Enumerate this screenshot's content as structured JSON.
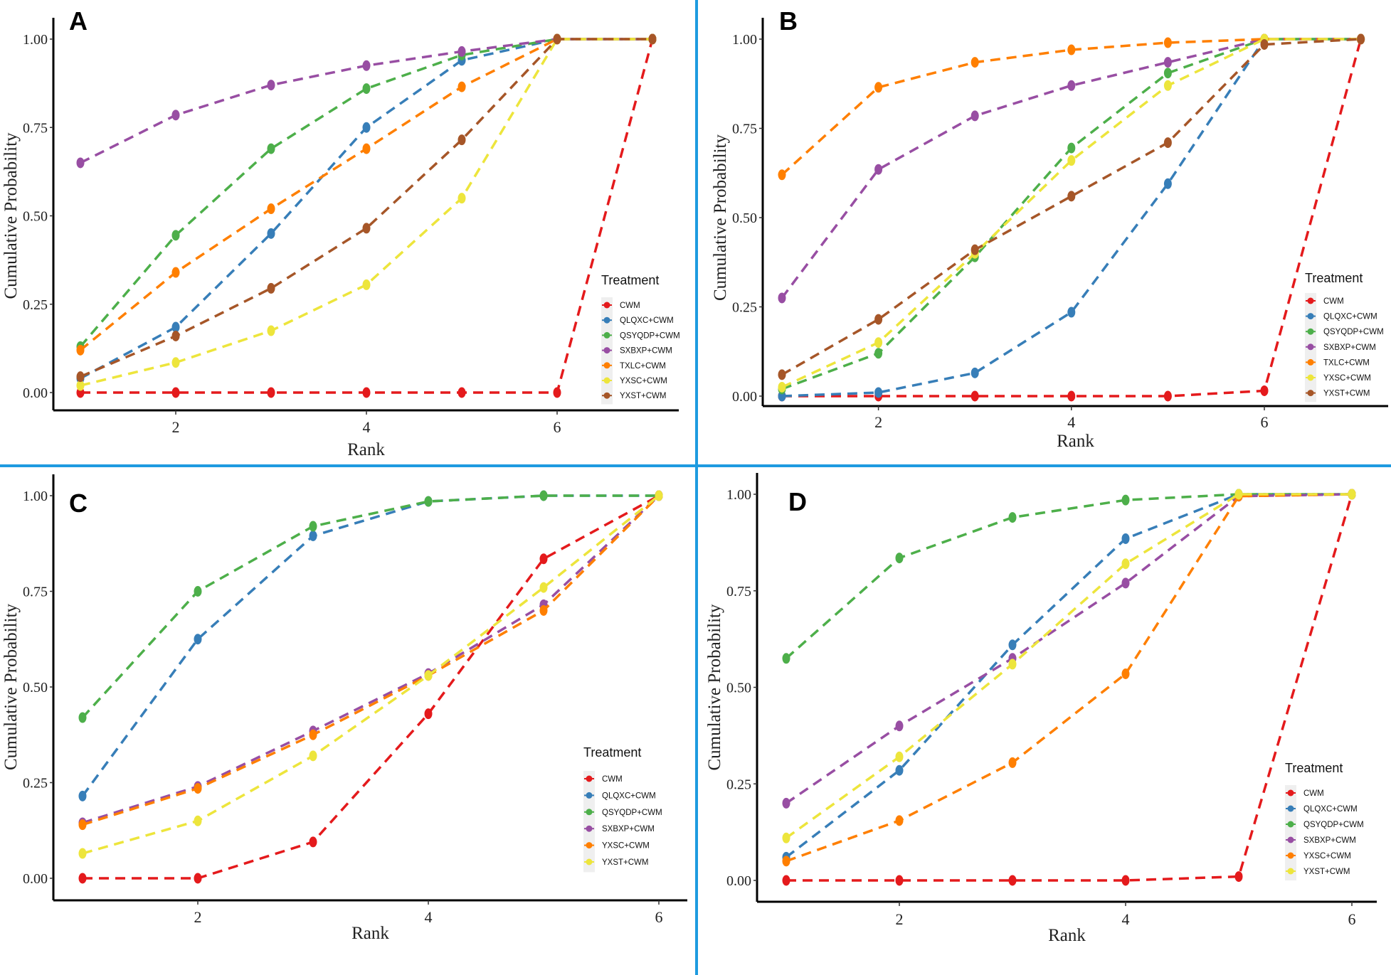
{
  "colors": {
    "CWM": "#E41A1C",
    "QLQXC+CWM": "#377EB8",
    "QSYQDP+CWM": "#4DAF4A",
    "SXBXP+CWM": "#984EA3",
    "TXLC+CWM": "#FF7F00",
    "YXSC+CWM": "#EDE53C",
    "YXST+CWM": "#A65628",
    "divider": "#1E9BE0"
  },
  "chart_data": [
    {
      "panel": "A",
      "type": "line",
      "xlabel": "Rank",
      "ylabel": "Cumulative Probability",
      "xlim": [
        1,
        7
      ],
      "ylim": [
        0,
        1
      ],
      "xticks": [
        2,
        4,
        6
      ],
      "yticks": [
        "0.00",
        "0.25",
        "0.50",
        "0.75",
        "1.00"
      ],
      "legend_title": "Treatment",
      "legend_position": "bottom-right",
      "x": [
        1,
        2,
        3,
        4,
        5,
        6,
        7
      ],
      "series": [
        {
          "name": "CWM",
          "color_key": "CWM",
          "values": [
            0,
            0,
            0,
            0,
            0,
            0,
            1
          ]
        },
        {
          "name": "QLQXC+CWM",
          "color_key": "QLQXC+CWM",
          "values": [
            0.04,
            0.185,
            0.45,
            0.75,
            0.94,
            1,
            1
          ]
        },
        {
          "name": "QSYQDP+CWM",
          "color_key": "QSYQDP+CWM",
          "values": [
            0.13,
            0.445,
            0.69,
            0.86,
            0.955,
            1,
            1
          ]
        },
        {
          "name": "SXBXP+CWM",
          "color_key": "SXBXP+CWM",
          "values": [
            0.65,
            0.785,
            0.87,
            0.925,
            0.965,
            1,
            1
          ]
        },
        {
          "name": "TXLC+CWM",
          "color_key": "TXLC+CWM",
          "values": [
            0.12,
            0.34,
            0.52,
            0.69,
            0.865,
            1,
            1
          ]
        },
        {
          "name": "YXSC+CWM",
          "color_key": "YXSC+CWM",
          "values": [
            0.02,
            0.085,
            0.175,
            0.305,
            0.55,
            1,
            1
          ]
        },
        {
          "name": "YXST+CWM",
          "color_key": "YXST+CWM",
          "values": [
            0.045,
            0.16,
            0.295,
            0.465,
            0.715,
            1,
            1
          ]
        }
      ]
    },
    {
      "panel": "B",
      "type": "line",
      "xlabel": "Rank",
      "ylabel": "Cumulative Probability",
      "xlim": [
        1,
        7
      ],
      "ylim": [
        0,
        1
      ],
      "xticks": [
        2,
        4,
        6
      ],
      "yticks": [
        "0.00",
        "0.25",
        "0.50",
        "0.75",
        "1.00"
      ],
      "legend_title": "Treatment",
      "legend_position": "bottom-right",
      "x": [
        1,
        2,
        3,
        4,
        5,
        6,
        7
      ],
      "series": [
        {
          "name": "CWM",
          "color_key": "CWM",
          "values": [
            0,
            0,
            0,
            0,
            0,
            0.015,
            1
          ]
        },
        {
          "name": "QLQXC+CWM",
          "color_key": "QLQXC+CWM",
          "values": [
            0,
            0.01,
            0.065,
            0.235,
            0.595,
            1,
            1
          ]
        },
        {
          "name": "QSYQDP+CWM",
          "color_key": "QSYQDP+CWM",
          "values": [
            0.02,
            0.12,
            0.39,
            0.695,
            0.905,
            1,
            1
          ]
        },
        {
          "name": "SXBXP+CWM",
          "color_key": "SXBXP+CWM",
          "values": [
            0.275,
            0.635,
            0.785,
            0.87,
            0.935,
            1,
            1
          ]
        },
        {
          "name": "TXLC+CWM",
          "color_key": "TXLC+CWM",
          "values": [
            0.62,
            0.865,
            0.935,
            0.97,
            0.99,
            1,
            1
          ]
        },
        {
          "name": "YXSC+CWM",
          "color_key": "YXSC+CWM",
          "values": [
            0.025,
            0.15,
            0.4,
            0.66,
            0.87,
            1,
            1
          ]
        },
        {
          "name": "YXST+CWM",
          "color_key": "YXST+CWM",
          "values": [
            0.06,
            0.215,
            0.41,
            0.56,
            0.71,
            0.985,
            1
          ]
        }
      ]
    },
    {
      "panel": "C",
      "type": "line",
      "xlabel": "Rank",
      "ylabel": "Cumulative Probability",
      "xlim": [
        1,
        6
      ],
      "ylim": [
        0,
        1
      ],
      "xticks": [
        2,
        4,
        6
      ],
      "yticks": [
        "0.00",
        "0.25",
        "0.50",
        "0.75",
        "1.00"
      ],
      "legend_title": "Treatment",
      "legend_position": "bottom-right",
      "x": [
        1,
        2,
        3,
        4,
        5,
        6
      ],
      "series": [
        {
          "name": "CWM",
          "color_key": "CWM",
          "values": [
            0,
            0,
            0.095,
            0.43,
            0.835,
            1
          ]
        },
        {
          "name": "QLQXC+CWM",
          "color_key": "QLQXC+CWM",
          "values": [
            0.215,
            0.625,
            0.895,
            0.985,
            1,
            1
          ]
        },
        {
          "name": "QSYQDP+CWM",
          "color_key": "QSYQDP+CWM",
          "values": [
            0.42,
            0.75,
            0.92,
            0.985,
            1,
            1
          ]
        },
        {
          "name": "SXBXP+CWM",
          "color_key": "SXBXP+CWM",
          "values": [
            0.145,
            0.24,
            0.385,
            0.535,
            0.715,
            1
          ]
        },
        {
          "name": "YXSC+CWM",
          "color_key": "TXLC+CWM",
          "values": [
            0.14,
            0.235,
            0.375,
            0.53,
            0.7,
            1
          ]
        },
        {
          "name": "YXST+CWM",
          "color_key": "YXSC+CWM",
          "values": [
            0.065,
            0.15,
            0.32,
            0.53,
            0.76,
            1
          ]
        }
      ]
    },
    {
      "panel": "D",
      "type": "line",
      "xlabel": "Rank",
      "ylabel": "Cumulative Probability",
      "xlim": [
        1,
        6
      ],
      "ylim": [
        0,
        1
      ],
      "xticks": [
        2,
        4,
        6
      ],
      "yticks": [
        "0.00",
        "0.25",
        "0.50",
        "0.75",
        "1.00"
      ],
      "legend_title": "Treatment",
      "legend_position": "bottom-right",
      "x": [
        1,
        2,
        3,
        4,
        5,
        6
      ],
      "series": [
        {
          "name": "CWM",
          "color_key": "CWM",
          "values": [
            0,
            0,
            0,
            0,
            0.01,
            1
          ]
        },
        {
          "name": "QLQXC+CWM",
          "color_key": "QLQXC+CWM",
          "values": [
            0.06,
            0.285,
            0.61,
            0.885,
            1,
            1
          ]
        },
        {
          "name": "QSYQDP+CWM",
          "color_key": "QSYQDP+CWM",
          "values": [
            0.575,
            0.835,
            0.94,
            0.985,
            1,
            1
          ]
        },
        {
          "name": "SXBXP+CWM",
          "color_key": "SXBXP+CWM",
          "values": [
            0.2,
            0.4,
            0.575,
            0.77,
            0.995,
            1
          ]
        },
        {
          "name": "YXSC+CWM",
          "color_key": "TXLC+CWM",
          "values": [
            0.05,
            0.155,
            0.305,
            0.535,
            0.995,
            1
          ]
        },
        {
          "name": "YXST+CWM",
          "color_key": "YXSC+CWM",
          "values": [
            0.11,
            0.32,
            0.56,
            0.82,
            1,
            1
          ]
        }
      ]
    }
  ]
}
